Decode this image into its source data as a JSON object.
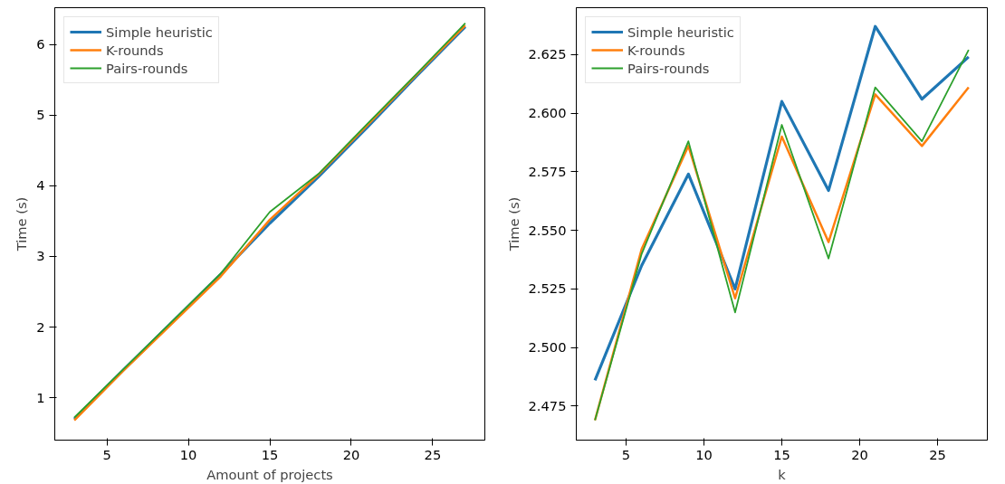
{
  "chart_data": [
    {
      "type": "line",
      "xlabel": "Amount of projects",
      "ylabel": "Time (s)",
      "x": [
        3,
        6,
        9,
        12,
        15,
        18,
        21,
        24,
        27
      ],
      "xlim": [
        1.8,
        28.2
      ],
      "ylim": [
        0.4,
        6.52
      ],
      "xticks": [
        5,
        10,
        15,
        20,
        25
      ],
      "yticks": [
        1,
        2,
        3,
        4,
        5,
        6
      ],
      "grid": false,
      "legend": "top left",
      "series": [
        {
          "name": "Simple heuristic",
          "color": "#1f77b4",
          "values": [
            0.7,
            1.39,
            2.07,
            2.75,
            3.47,
            4.13,
            4.83,
            5.55,
            6.25
          ]
        },
        {
          "name": "K-rounds",
          "color": "#ff7f0e",
          "values": [
            0.68,
            1.38,
            2.05,
            2.72,
            3.52,
            4.16,
            4.86,
            5.57,
            6.27
          ]
        },
        {
          "name": "Pairs-rounds",
          "color": "#2ca02c",
          "values": [
            0.72,
            1.4,
            2.08,
            2.76,
            3.63,
            4.17,
            4.88,
            5.58,
            6.3
          ]
        }
      ]
    },
    {
      "type": "line",
      "xlabel": "k",
      "ylabel": "Time (s)",
      "x": [
        3,
        6,
        9,
        12,
        15,
        18,
        21,
        24,
        27
      ],
      "xlim": [
        1.8,
        28.2
      ],
      "ylim": [
        2.4605,
        2.645
      ],
      "xticks": [
        5,
        10,
        15,
        20,
        25
      ],
      "yticks": [
        {
          "value": 2.475,
          "label": "2.475"
        },
        {
          "value": 2.5,
          "label": "2.500"
        },
        {
          "value": 2.525,
          "label": "2.525"
        },
        {
          "value": 2.55,
          "label": "2.550"
        },
        {
          "value": 2.575,
          "label": "2.575"
        },
        {
          "value": 2.6,
          "label": "2.600"
        },
        {
          "value": 2.625,
          "label": "2.625"
        }
      ],
      "grid": false,
      "legend": "top left",
      "series": [
        {
          "name": "Simple heuristic",
          "color": "#1f77b4",
          "values": [
            2.486,
            2.535,
            2.574,
            2.525,
            2.605,
            2.567,
            2.637,
            2.606,
            2.624
          ]
        },
        {
          "name": "K-rounds",
          "color": "#ff7f0e",
          "values": [
            2.469,
            2.542,
            2.586,
            2.521,
            2.59,
            2.545,
            2.608,
            2.586,
            2.611
          ]
        },
        {
          "name": "Pairs-rounds",
          "color": "#2ca02c",
          "values": [
            2.469,
            2.54,
            2.588,
            2.515,
            2.595,
            2.538,
            2.611,
            2.588,
            2.627
          ]
        }
      ]
    }
  ]
}
